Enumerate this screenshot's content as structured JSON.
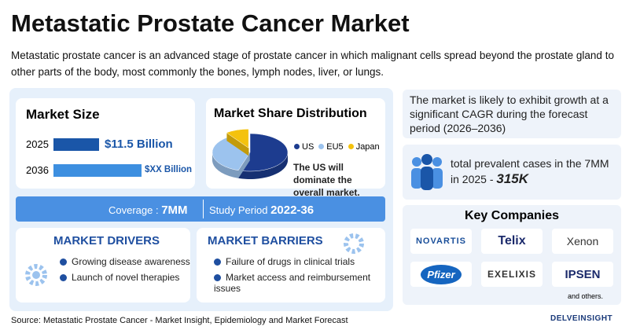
{
  "header": {
    "title": "Metastatic Prostate Cancer Market",
    "description": "Metastatic prostate cancer is an advanced stage of prostate cancer in which malignant cells spread beyond the prostate gland to other parts of the body, most commonly the bones, lymph nodes, liver, or lungs."
  },
  "market_size": {
    "title": "Market Size",
    "rows": [
      {
        "year": "2025",
        "label": "$11.5 Billion"
      },
      {
        "year": "2036",
        "label": "$XX Billion"
      }
    ]
  },
  "market_share": {
    "title": "Market Share Distribution",
    "segments": [
      {
        "name": "US",
        "value": 55,
        "color": "#1d3c8f"
      },
      {
        "name": "EU5",
        "value": 35,
        "color": "#9cc3ee"
      },
      {
        "name": "Japan",
        "value": 10,
        "color": "#f4c20d"
      }
    ],
    "note": "The US will dominate the overall market."
  },
  "coverage": {
    "label": "Coverage :",
    "value": "7MM"
  },
  "study_period": {
    "label": "Study Period",
    "value": "2022-36"
  },
  "drivers": {
    "title": "MARKET DRIVERS",
    "items": [
      "Growing disease awareness",
      "Launch of novel therapies"
    ]
  },
  "barriers": {
    "title": "MARKET BARRIERS",
    "items": [
      "Failure of drugs in clinical trials",
      "Market access and reimbursement issues"
    ]
  },
  "growth_note": "The market is likely to exhibit growth at a significant CAGR during the forecast period (2026–2036)",
  "prevalence": {
    "text": "total prevalent cases in the 7MM in 2025 -",
    "value": "315K"
  },
  "key_companies": {
    "title": "Key Companies",
    "companies": [
      "NOVARTIS",
      "Telix",
      "Xenon",
      "Pfizer",
      "EXELIXIS",
      "IPSEN"
    ],
    "footnote": "and others."
  },
  "source": "Source: Metastatic Prostate Cancer - Market Insight, Epidemiology and Market Forecast",
  "brand": "DELVEINSIGHT"
}
